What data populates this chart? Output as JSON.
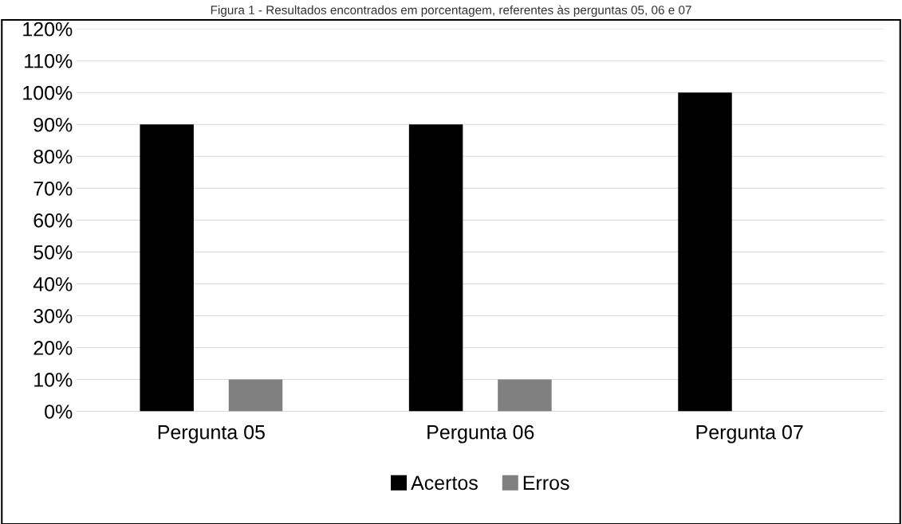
{
  "chart_data": {
    "type": "bar",
    "title": "Figura 1 - Resultados encontrados em porcentagem, referentes às perguntas 05, 06 e 07",
    "categories": [
      "Pergunta 05",
      "Pergunta 06",
      "Pergunta 07"
    ],
    "series": [
      {
        "name": "Acertos",
        "color": "#000000",
        "values": [
          90,
          90,
          100
        ]
      },
      {
        "name": "Erros",
        "color": "#808080",
        "values": [
          10,
          10,
          0
        ]
      }
    ],
    "ylim": [
      0,
      120
    ],
    "yticks": [
      {
        "value": 0,
        "label": "0%"
      },
      {
        "value": 10,
        "label": "10%"
      },
      {
        "value": 20,
        "label": "20%"
      },
      {
        "value": 30,
        "label": "30%"
      },
      {
        "value": 40,
        "label": "40%"
      },
      {
        "value": 50,
        "label": "50%"
      },
      {
        "value": 60,
        "label": "60%"
      },
      {
        "value": 70,
        "label": "70%"
      },
      {
        "value": 80,
        "label": "80%"
      },
      {
        "value": 90,
        "label": "90%"
      },
      {
        "value": 100,
        "label": "100%"
      },
      {
        "value": 110,
        "label": "110%"
      },
      {
        "value": 120,
        "label": "120%"
      }
    ],
    "grid": "y",
    "legend": "bottom"
  }
}
